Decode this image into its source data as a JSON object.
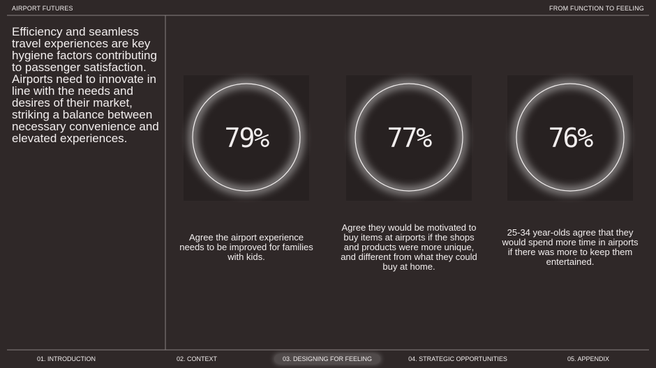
{
  "header": {
    "left": "AIRPORT FUTURES",
    "right": "FROM FUNCTION TO FEELING"
  },
  "intro": "Efficiency and seamless travel experiences are key hygiene factors contributing to passenger satisfaction. Airports need to innovate in line with the needs and desires of their market, striking a balance between necessary convenience and elevated experiences.",
  "stats": [
    {
      "value": "79%",
      "description": "Agree the airport experience needs to be improved for families with kids."
    },
    {
      "value": "77%",
      "description": "Agree they would be motivated to buy items at airports if the shops and products were more unique, and different from what they could buy at home."
    },
    {
      "value": "76%",
      "description": "25-34 year-olds agree that they would spend more time in airports if there was more to keep them entertained."
    }
  ],
  "nav": {
    "items": [
      "01. INTRODUCTION",
      "02. CONTEXT",
      "03. DESIGNING FOR FEELING",
      "04. STRATEGIC OPPORTUNITIES",
      "05. APPENDIX"
    ],
    "active": 2
  }
}
